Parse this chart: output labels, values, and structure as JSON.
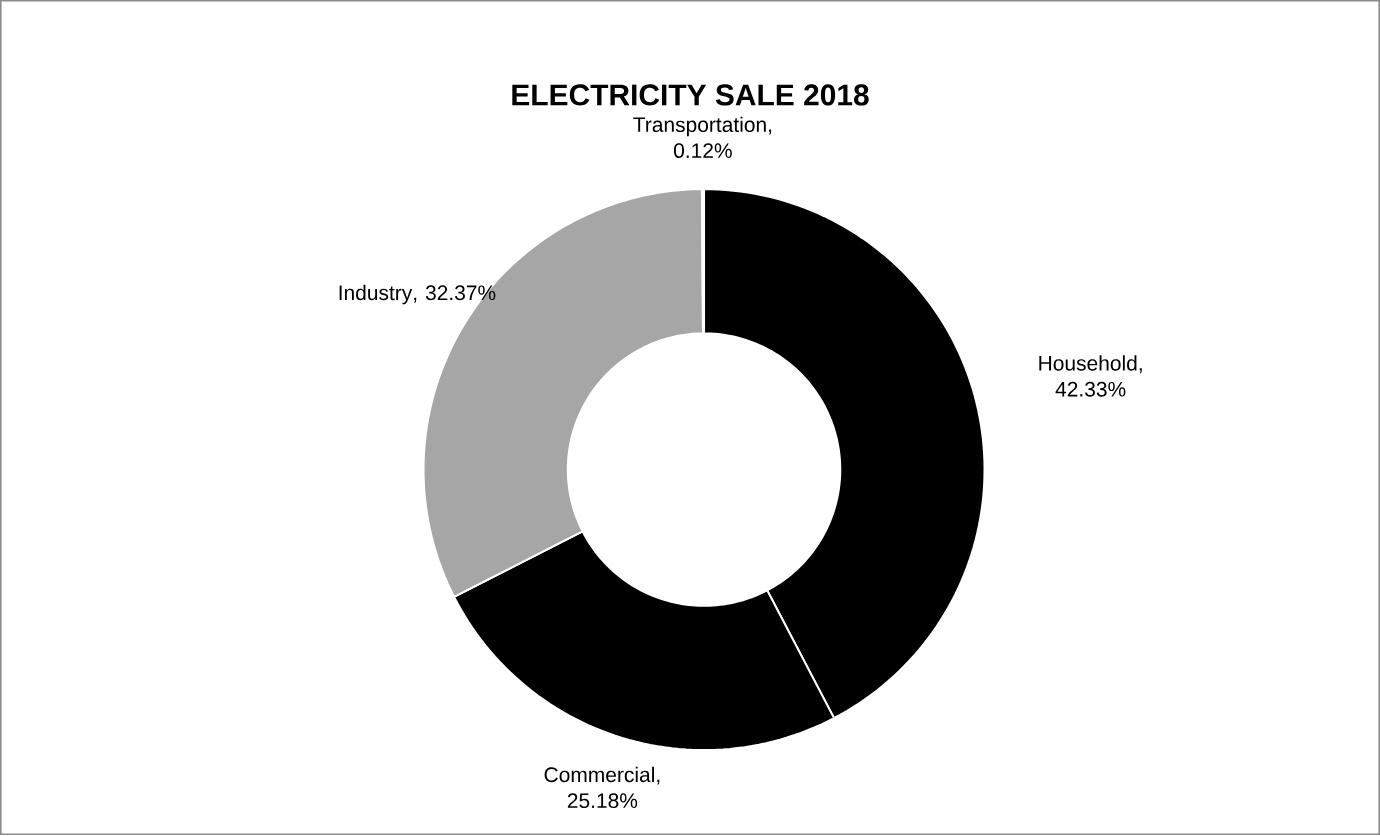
{
  "chart_data": {
    "type": "donut",
    "title": "ELECTRICITY SALE 2018",
    "categories": [
      "Household",
      "Commercial",
      "Industry",
      "Transportation"
    ],
    "values": [
      42.33,
      25.18,
      32.37,
      0.12
    ],
    "colors": [
      "#000000",
      "#000000",
      "#a6a6a6",
      "#ffffff"
    ],
    "value_labels": [
      ", 42.33%",
      ", 25.18%",
      ", 32.37%",
      ", 0.12%"
    ],
    "data_labels": true
  }
}
